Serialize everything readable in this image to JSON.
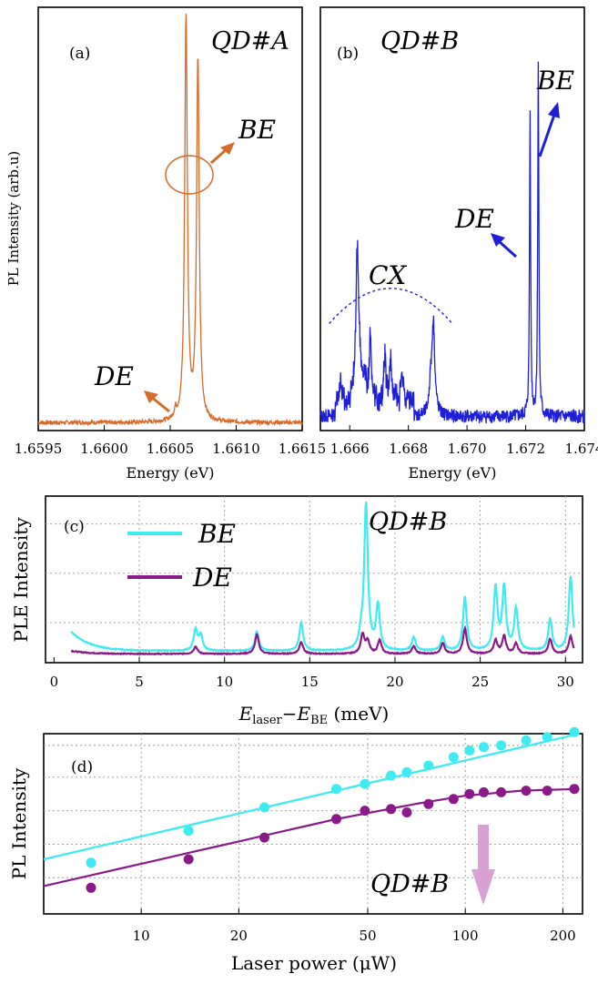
{
  "colors": {
    "orange": "#D86A28",
    "blue": "#1F1FD8",
    "cyan": "#3FEAF0",
    "purple": "#8A1A88",
    "arrow_pink": "#D9A0D4",
    "grid": "#9a9a9a"
  },
  "chart_data": [
    {
      "id": "a",
      "type": "line",
      "panel_label": "(a)",
      "annotation": "QD#A",
      "ylabel": "PL Intensity (arb.u)",
      "xlabel": "Energy (eV)",
      "xlim": [
        1.6595,
        1.6615
      ],
      "xticks": [
        "1.6595",
        "1.6600",
        "1.6605",
        "1.6610",
        "1.6615"
      ],
      "xtick_values": [
        1.6595,
        1.66,
        1.6605,
        1.661,
        1.6615
      ],
      "labels": {
        "BE": "BE",
        "DE": "DE"
      },
      "series": [
        {
          "color": "orange",
          "peaks": [
            {
              "x": 1.66062,
              "h": 0.995,
              "w": 1.2e-05
            },
            {
              "x": 1.66071,
              "h": 0.88,
              "w": 1.2e-05
            },
            {
              "x": 1.66054,
              "h": 0.02,
              "w": 1e-05
            }
          ]
        }
      ]
    },
    {
      "id": "b",
      "type": "line",
      "panel_label": "(b)",
      "annotation": "QD#B",
      "xlabel": "Energy (eV)",
      "xlim": [
        1.665,
        1.674
      ],
      "xticks": [
        "1.666",
        "1.668",
        "1.670",
        "1.672",
        "1.674"
      ],
      "xtick_values": [
        1.666,
        1.668,
        1.67,
        1.672,
        1.674
      ],
      "labels": {
        "BE": "BE",
        "DE": "DE",
        "CX": "CX"
      },
      "series": [
        {
          "color": "blue",
          "peaks": [
            {
              "x": 1.66625,
              "h": 0.3,
              "w": 5e-05
            },
            {
              "x": 1.6663,
              "h": 0.13,
              "w": 8e-05
            },
            {
              "x": 1.6667,
              "h": 0.17,
              "w": 4e-05
            },
            {
              "x": 1.6672,
              "h": 0.13,
              "w": 4e-05
            },
            {
              "x": 1.6674,
              "h": 0.1,
              "w": 4e-05
            },
            {
              "x": 1.6678,
              "h": 0.07,
              "w": 5e-05
            },
            {
              "x": 1.6657,
              "h": 0.05,
              "w": 4e-05
            },
            {
              "x": 1.6665,
              "h": 0.07,
              "w": 4e-05
            },
            {
              "x": 1.66885,
              "h": 0.24,
              "w": 6e-05
            },
            {
              "x": 1.66875,
              "h": 0.06,
              "w": 5e-05
            },
            {
              "x": 1.67215,
              "h": 0.79,
              "w": 2.2e-05
            },
            {
              "x": 1.67243,
              "h": 0.92,
              "w": 2.2e-05
            }
          ]
        }
      ],
      "cx_arc": {
        "x0": 1.6653,
        "x1": 1.6695,
        "peak_y": 0.34,
        "end_y": 0.25
      }
    },
    {
      "id": "c",
      "type": "line",
      "panel_label": "(c)",
      "annotation": "QD#B",
      "ylabel": "PLE Intensity",
      "xlabel_main": "E",
      "xlabel_sub1": "laser",
      "xlabel_mid": "−E",
      "xlabel_sub2": "BE",
      "xlabel_unit": " (meV)",
      "xlim": [
        -0.5,
        31
      ],
      "xticks": [
        "0",
        "5",
        "10",
        "15",
        "20",
        "25",
        "30"
      ],
      "xtick_values": [
        0,
        5,
        10,
        15,
        20,
        25,
        30
      ],
      "ygrid": [
        0.22,
        0.55,
        0.88
      ],
      "legend": [
        {
          "name": "BE",
          "color": "cyan"
        },
        {
          "name": "DE",
          "color": "purple"
        }
      ],
      "series": [
        {
          "name": "BE",
          "color": "cyan",
          "base": 0.03,
          "x_range": [
            1.0,
            30.5
          ],
          "start_bump": 0.13,
          "peaks": [
            [
              8.3,
              0.14
            ],
            [
              8.6,
              0.1
            ],
            [
              11.9,
              0.13
            ],
            [
              14.5,
              0.19
            ],
            [
              18.0,
              0.07
            ],
            [
              18.3,
              0.98
            ],
            [
              19.0,
              0.3
            ],
            [
              21.1,
              0.09
            ],
            [
              22.8,
              0.09
            ],
            [
              24.1,
              0.36
            ],
            [
              25.9,
              0.42
            ],
            [
              26.4,
              0.42
            ],
            [
              27.1,
              0.28
            ],
            [
              29.1,
              0.21
            ],
            [
              30.3,
              0.5
            ]
          ]
        },
        {
          "name": "DE",
          "color": "purple",
          "base": 0.01,
          "x_range": [
            1.0,
            30.5
          ],
          "start_bump": 0.02,
          "peaks": [
            [
              8.3,
              0.05
            ],
            [
              11.9,
              0.13
            ],
            [
              14.5,
              0.08
            ],
            [
              18.1,
              0.13
            ],
            [
              18.4,
              0.08
            ],
            [
              19.1,
              0.09
            ],
            [
              21.1,
              0.05
            ],
            [
              22.8,
              0.07
            ],
            [
              24.1,
              0.17
            ],
            [
              25.9,
              0.09
            ],
            [
              26.4,
              0.12
            ],
            [
              27.1,
              0.07
            ],
            [
              29.1,
              0.1
            ],
            [
              30.3,
              0.12
            ]
          ]
        }
      ]
    },
    {
      "id": "d",
      "type": "scatter",
      "panel_label": "(d)",
      "annotation": "QD#B",
      "ylabel": "PL Intensity",
      "xlabel_prefix": "Laser power (",
      "xlabel_unit": "μW",
      "xlabel_suffix": ")",
      "xscale": "log",
      "xlim": [
        5,
        230
      ],
      "xticks": [
        "10",
        "20",
        "50",
        "100",
        "200"
      ],
      "xtick_values": [
        10,
        20,
        50,
        100,
        200
      ],
      "ylim": [
        0,
        1
      ],
      "ygrid": [
        0.14,
        0.34,
        0.54,
        0.74,
        0.93
      ],
      "series": [
        {
          "name": "BE",
          "color": "cyan",
          "points": [
            [
              7,
              0.23
            ],
            [
              14,
              0.42
            ],
            [
              24,
              0.56
            ],
            [
              40,
              0.67
            ],
            [
              49,
              0.7
            ],
            [
              59,
              0.75
            ],
            [
              66,
              0.77
            ],
            [
              77,
              0.81
            ],
            [
              92,
              0.86
            ],
            [
              103,
              0.9
            ],
            [
              114,
              0.92
            ],
            [
              129,
              0.93
            ],
            [
              154,
              0.96
            ],
            [
              179,
              0.98
            ],
            [
              217,
              1.01
            ]
          ],
          "fit": [
            [
              5,
              0.25
            ],
            [
              225,
              1.0
            ]
          ]
        },
        {
          "name": "DE",
          "color": "purple",
          "points": [
            [
              7,
              0.08
            ],
            [
              14,
              0.25
            ],
            [
              24,
              0.38
            ],
            [
              40,
              0.49
            ],
            [
              49,
              0.54
            ],
            [
              59,
              0.55
            ],
            [
              66,
              0.53
            ],
            [
              77,
              0.58
            ],
            [
              92,
              0.61
            ],
            [
              103,
              0.64
            ],
            [
              114,
              0.65
            ],
            [
              129,
              0.65
            ],
            [
              154,
              0.66
            ],
            [
              179,
              0.66
            ],
            [
              217,
              0.67
            ]
          ],
          "fit": [
            [
              5,
              0.09
            ],
            [
              40,
              0.49
            ],
            [
              70,
              0.58
            ],
            [
              100,
              0.63
            ],
            [
              150,
              0.66
            ],
            [
              225,
              0.67
            ]
          ]
        }
      ]
    }
  ]
}
